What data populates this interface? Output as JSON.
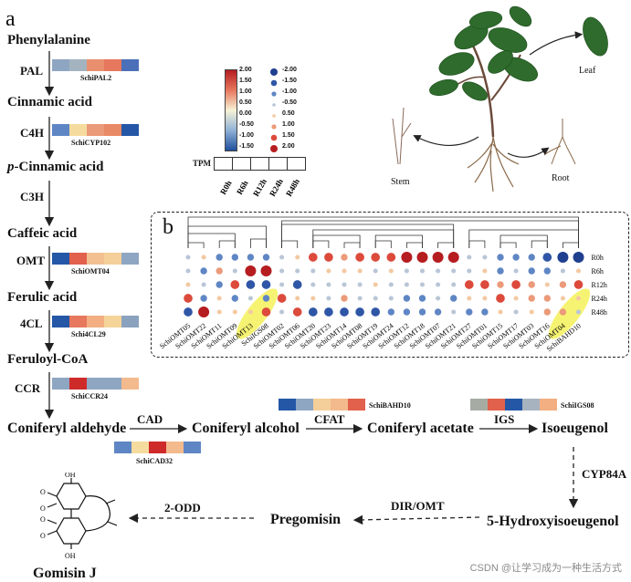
{
  "panels": {
    "a": "a",
    "b": "b"
  },
  "colors": {
    "dark_blue": "#2457a6",
    "mid_blue": "#5f86c4",
    "grey_blue": "#8fa6c2",
    "pale_yellow": "#f5dc9e",
    "peach": "#f3ba8e",
    "salmon": "#e7775d",
    "red": "#cf2a2a",
    "dark_red": "#b51d21",
    "highlight": "#f4f15a"
  },
  "pathway_a": {
    "compounds": [
      "Phenylalanine",
      "Cinnamic acid",
      "p-Cinnamic acid",
      "Caffeic acid",
      "Ferulic acid",
      "Feruloyl-CoA"
    ],
    "compound_italic_prefix": "p",
    "compound_italic_rest": "-Cinnamic acid",
    "enzymes": [
      "PAL",
      "C4H",
      "C3H",
      "OMT",
      "4CL",
      "CCR"
    ],
    "gene_labels": [
      "SchiPAL2",
      "SchiCYP102",
      "SchiOMT04",
      "Schi4CL29",
      "SchiCCR24"
    ],
    "heatmaps": [
      [
        "#8fa6c2",
        "#a3b4c0",
        "#e98f6e",
        "#e7775d",
        "#4b6fb9"
      ],
      [
        "#5f86c4",
        "#f5dc9e",
        "#eb9a7a",
        "#e98a66",
        "#2457a6"
      ],
      [
        "#2457a6",
        "#e1614c",
        "#f3c092",
        "#f5cf99",
        "#8fa6c2"
      ],
      [
        "#2457a6",
        "#e7775d",
        "#f3ae82",
        "#f5d49a",
        "#8ba2bf"
      ],
      [
        "#8fa6c2",
        "#cf2a2a",
        "#8fa6c2",
        "#8fa6c2",
        "#f3ba8e"
      ]
    ]
  },
  "pathway_bottom": {
    "compounds": [
      "Coniferyl aldehyde",
      "Coniferyl alcohol",
      "Coniferyl acetate",
      "Isoeugenol",
      "5-Hydroxyisoeugenol",
      "Pregomisin",
      "Gomisin J"
    ],
    "enzymes": [
      "CAD",
      "CFAT",
      "IGS",
      "CYP84A",
      "DIR/OMT",
      "2-ODD"
    ],
    "gene_labels": [
      "SchiCAD32",
      "SchiBAHD10",
      "SchiIGS08"
    ],
    "heatmaps": [
      [
        "#5f86c4",
        "#f5dc9e",
        "#cf2a2a",
        "#f3ba8e",
        "#5f86c4"
      ],
      [
        "#2457a6",
        "#8fa6c2",
        "#f5cf99",
        "#f3ba8e",
        "#e1614c"
      ],
      [
        "#a6aca3",
        "#e1614c",
        "#2457a6",
        "#a7b4c0",
        "#f3ae82"
      ]
    ],
    "structure_labels": [
      "OH",
      "O",
      "O",
      "O",
      "O",
      "OH"
    ]
  },
  "legend": {
    "gradient_ticks": [
      "2.00",
      "1.50",
      "1.00",
      "0.50",
      "0.00",
      "-0.50",
      "-1.00",
      "-1.50"
    ],
    "dot_ticks": [
      "-2.00",
      "-1.50",
      "-1.00",
      "-0.50",
      "0.50",
      "1.00",
      "1.50",
      "2.00"
    ],
    "tpm_label": "TPM",
    "time_labels": [
      "R0h",
      "R6h",
      "R12h",
      "R24h",
      "R48h"
    ]
  },
  "photo_labels": {
    "leaf": "Leaf",
    "stem": "Stem",
    "root": "Root"
  },
  "panel_b": {
    "row_labels": [
      "R0h",
      "R6h",
      "R12h",
      "R24h",
      "R48h"
    ],
    "genes": [
      "SchiOMT05",
      "SchiOMT22",
      "SchiOMT11",
      "SchiOMT09",
      "SchiOMT13",
      "SchiIGS08",
      "SchiOMT02",
      "SchiOMT06",
      "SchiOMT20",
      "SchiOMT23",
      "SchiOMT14",
      "SchiOMT08",
      "SchiOMT19",
      "SchiOMT24",
      "SchiOMT12",
      "SchiOMT18",
      "SchiOMT07",
      "SchiOMT21",
      "SchiOMT27",
      "SchiOMT01",
      "SchiOMT15",
      "SchiOMT17",
      "SchiOMT03",
      "SchiOMT16",
      "SchiOMT04",
      "SchiBAHD10"
    ],
    "highlighted": [
      "SchiIGS08",
      "SchiBAHD10"
    ],
    "values": [
      [
        -0.5,
        -0.5,
        0.5,
        1.5,
        -1.5
      ],
      [
        0.5,
        -1.0,
        -0.5,
        -1.0,
        2.0
      ],
      [
        -1.0,
        1.0,
        -1.0,
        0.5,
        0.5
      ],
      [
        -1.0,
        -0.5,
        1.5,
        -1.0,
        0.5
      ],
      [
        -1.0,
        2.0,
        -1.5,
        -0.5,
        0.5
      ],
      [
        -1.0,
        2.0,
        -1.5,
        -1.0,
        1.5
      ],
      [
        -0.5,
        -0.5,
        -0.5,
        1.5,
        -0.5
      ],
      [
        0.5,
        -0.5,
        -1.5,
        0.5,
        1.5
      ],
      [
        1.5,
        -0.5,
        -0.5,
        0.5,
        -1.5
      ],
      [
        1.5,
        0.5,
        -0.5,
        -0.5,
        -1.5
      ],
      [
        1.0,
        0.5,
        -0.5,
        1.0,
        -1.5
      ],
      [
        1.5,
        0.5,
        -0.5,
        -0.5,
        -1.5
      ],
      [
        1.5,
        -0.5,
        0.5,
        -0.5,
        -1.5
      ],
      [
        1.5,
        0.5,
        -0.5,
        -0.5,
        -1.0
      ],
      [
        2.0,
        -0.5,
        -0.5,
        -1.0,
        -1.0
      ],
      [
        2.0,
        -0.5,
        -0.5,
        -1.0,
        -1.0
      ],
      [
        2.0,
        -0.5,
        -0.5,
        -0.5,
        -1.0
      ],
      [
        2.0,
        -0.5,
        -0.5,
        -1.0,
        -0.5
      ],
      [
        -0.5,
        -0.5,
        1.5,
        0.5,
        -1.0
      ],
      [
        -0.5,
        0.5,
        1.5,
        0.5,
        -1.0
      ],
      [
        -1.0,
        -1.0,
        1.0,
        1.5,
        0.5
      ],
      [
        -1.0,
        -0.5,
        1.5,
        0.5,
        -0.5
      ],
      [
        -1.0,
        -1.0,
        1.0,
        1.0,
        0.5
      ],
      [
        -1.5,
        -1.0,
        0.5,
        1.0,
        1.0
      ],
      [
        -2.0,
        -0.5,
        1.0,
        0.5,
        1.0
      ],
      [
        -2.0,
        0.5,
        1.5,
        0.5,
        -0.5
      ]
    ]
  },
  "watermark": "CSDN @让学习成为一种生活方式"
}
